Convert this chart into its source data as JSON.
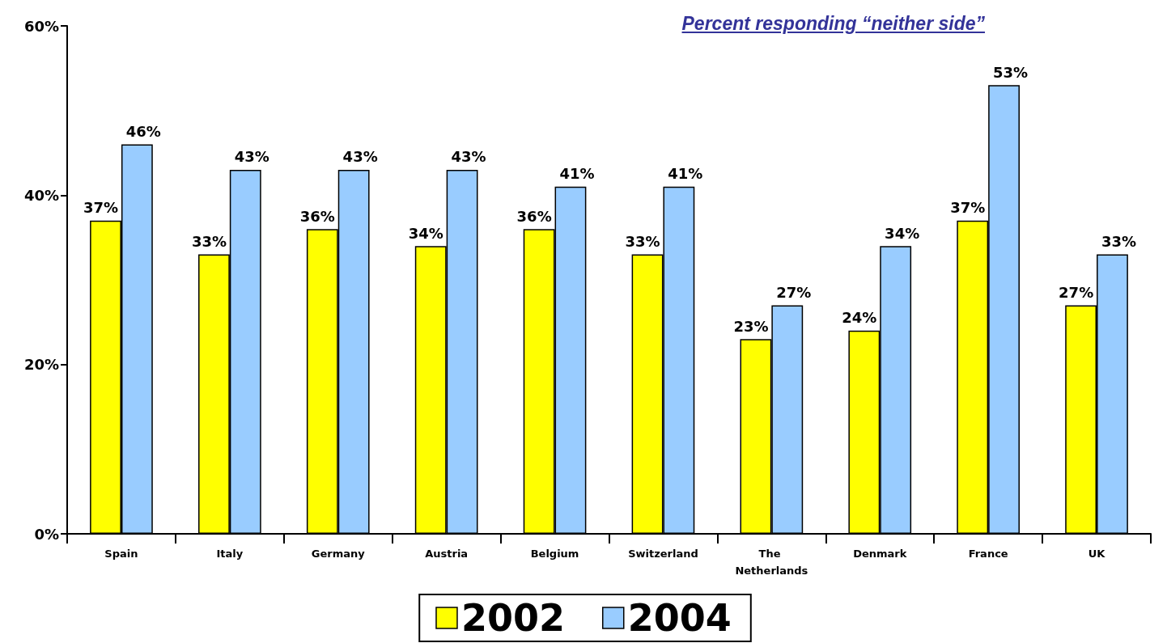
{
  "chart_data": {
    "type": "bar",
    "title": "Percent responding “neither side”",
    "categories": [
      "Spain",
      "Italy",
      "Germany",
      "Austria",
      "Belgium",
      "Switzerland",
      "The Netherlands",
      "Denmark",
      "France",
      "UK"
    ],
    "series": [
      {
        "name": "2002",
        "color": "#ffff00",
        "values": [
          37,
          33,
          36,
          34,
          36,
          33,
          23,
          24,
          37,
          27
        ],
        "value_labels": [
          "37%",
          "33%",
          "36%",
          "34%",
          "36%",
          "33%",
          "23%",
          "24%",
          "37%",
          "27%"
        ]
      },
      {
        "name": "2004",
        "color": "#99ccff",
        "values": [
          46,
          43,
          43,
          43,
          41,
          41,
          27,
          34,
          53,
          33
        ],
        "value_labels": [
          "46%",
          "43%",
          "43%",
          "43%",
          "41%",
          "41%",
          "27%",
          "34%",
          "53%",
          "33%"
        ]
      }
    ],
    "ylim": [
      0,
      60
    ],
    "yticks": [
      {
        "value": 0,
        "label": "0%"
      },
      {
        "value": 20,
        "label": "20%"
      },
      {
        "value": 40,
        "label": "40%"
      },
      {
        "value": 60,
        "label": "60%"
      }
    ],
    "grid": false,
    "legend": "bottom"
  }
}
